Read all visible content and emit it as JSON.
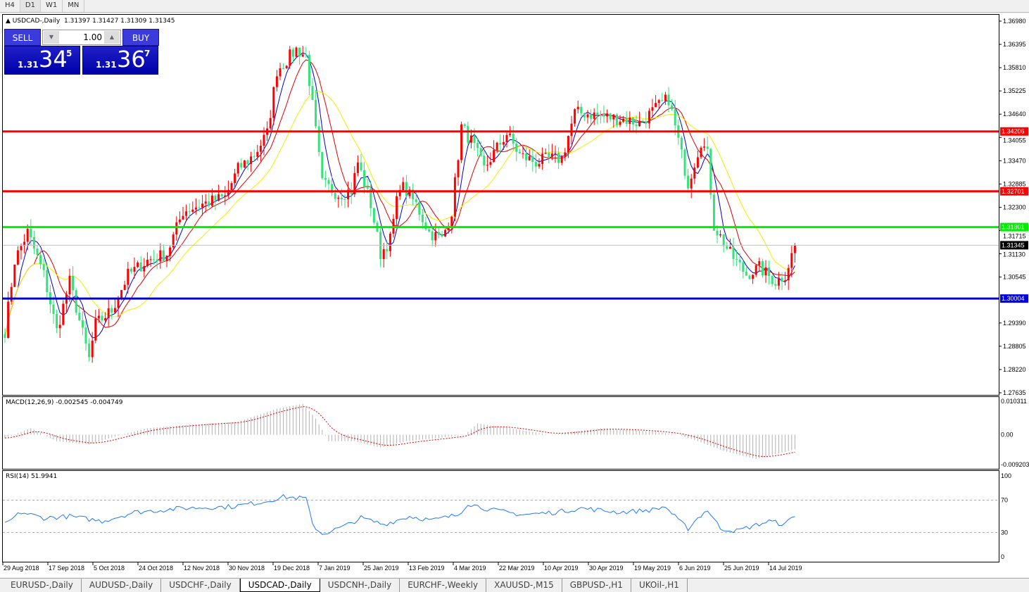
{
  "timeframes": [
    "H4",
    "D1",
    "W1",
    "MN"
  ],
  "active_timeframe": "D1",
  "header": {
    "symbol": "USDCAD-,Daily",
    "ohlc": "1.31397 1.31427 1.31309 1.31345"
  },
  "trade_panel": {
    "sell_label": "SELL",
    "buy_label": "BUY",
    "lot": "1.00",
    "sell_big": "1.31",
    "sell_mid": "34",
    "sell_sup": "5",
    "buy_big": "1.31",
    "buy_mid": "36",
    "buy_sup": "7"
  },
  "price_axis": [
    "1.36980",
    "1.36395",
    "1.35810",
    "1.35225",
    "1.34640",
    "1.34055",
    "1.33470",
    "1.32885",
    "1.32300",
    "1.31715",
    "1.31130",
    "1.30545",
    "1.29390",
    "1.28805",
    "1.28220",
    "1.27635"
  ],
  "levels": [
    {
      "price": 1.34206,
      "label": "1.34206",
      "color": "#ff0000"
    },
    {
      "price": 1.32701,
      "label": "1.32701",
      "color": "#ff0000"
    },
    {
      "price": 1.31801,
      "label": "1.31801",
      "color": "#00ee00"
    },
    {
      "price": 1.30004,
      "label": "1.30004",
      "color": "#0000dd"
    }
  ],
  "current_price": {
    "price": 1.31345,
    "label": "1.31345"
  },
  "macd": {
    "title": "MACD(12,26,9) -0.002545 -0.004749",
    "axis": [
      "0.010311",
      "0.00",
      "-0.009203"
    ]
  },
  "rsi": {
    "title": "RSI(14) 51.9941",
    "axis": [
      "100",
      "70",
      "30",
      "0"
    ]
  },
  "dates": [
    "29 Aug 2018",
    "17 Sep 2018",
    "5 Oct 2018",
    "24 Oct 2018",
    "12 Nov 2018",
    "30 Nov 2018",
    "19 Dec 2018",
    "7 Jan 2019",
    "25 Jan 2019",
    "13 Feb 2019",
    "4 Mar 2019",
    "22 Mar 2019",
    "10 Apr 2019",
    "30 Apr 2019",
    "19 May 2019",
    "6 Jun 2019",
    "25 Jun 2019",
    "14 Jul 2019"
  ],
  "chart_data": {
    "type": "candlestick",
    "ylim": [
      1.27635,
      1.3698
    ],
    "close_path": [
      [
        0,
        1.2919
      ],
      [
        3,
        1.3096
      ],
      [
        7,
        1.3167
      ],
      [
        12,
        1.3061
      ],
      [
        16,
        1.2919
      ],
      [
        20,
        1.3043
      ],
      [
        26,
        1.2848
      ],
      [
        28,
        1.2936
      ],
      [
        33,
        1.2971
      ],
      [
        38,
        1.306
      ],
      [
        44,
        1.3096
      ],
      [
        50,
        1.3113
      ],
      [
        55,
        1.322
      ],
      [
        61,
        1.3238
      ],
      [
        68,
        1.3255
      ],
      [
        72,
        1.3326
      ],
      [
        77,
        1.3362
      ],
      [
        81,
        1.3415
      ],
      [
        84,
        1.3574
      ],
      [
        90,
        1.3627
      ],
      [
        93,
        1.361
      ],
      [
        95,
        1.3485
      ],
      [
        98,
        1.329
      ],
      [
        103,
        1.3263
      ],
      [
        107,
        1.3272
      ],
      [
        109,
        1.3343
      ],
      [
        113,
        1.3237
      ],
      [
        116,
        1.3113
      ],
      [
        119,
        1.3149
      ],
      [
        122,
        1.329
      ],
      [
        127,
        1.3237
      ],
      [
        131,
        1.3167
      ],
      [
        135,
        1.3149
      ],
      [
        138,
        1.322
      ],
      [
        141,
        1.3432
      ],
      [
        144,
        1.3397
      ],
      [
        148,
        1.3326
      ],
      [
        152,
        1.3379
      ],
      [
        155,
        1.3415
      ],
      [
        159,
        1.3361
      ],
      [
        164,
        1.3343
      ],
      [
        168,
        1.3352
      ],
      [
        172,
        1.3352
      ],
      [
        176,
        1.3467
      ],
      [
        179,
        1.3467
      ],
      [
        185,
        1.3458
      ],
      [
        192,
        1.345
      ],
      [
        196,
        1.3441
      ],
      [
        202,
        1.3485
      ],
      [
        205,
        1.3503
      ],
      [
        208,
        1.3397
      ],
      [
        211,
        1.329
      ],
      [
        215,
        1.3397
      ],
      [
        217,
        1.3361
      ],
      [
        219,
        1.3184
      ],
      [
        224,
        1.3113
      ],
      [
        229,
        1.3061
      ],
      [
        233,
        1.3078
      ],
      [
        238,
        1.3043
      ],
      [
        241,
        1.3061
      ],
      [
        244,
        1.3134
      ]
    ],
    "ma_periods": [
      5,
      10,
      20
    ],
    "ma_colors": [
      "#0000cc",
      "#dd0000",
      "#eeee00"
    ],
    "up_color": "#ff0000",
    "down_color": "#33e27a",
    "rsi_path": [
      [
        0,
        40
      ],
      [
        5,
        55
      ],
      [
        12,
        48
      ],
      [
        20,
        50
      ],
      [
        30,
        44
      ],
      [
        40,
        55
      ],
      [
        55,
        60
      ],
      [
        70,
        62
      ],
      [
        80,
        68
      ],
      [
        86,
        74
      ],
      [
        93,
        72
      ],
      [
        95,
        40
      ],
      [
        98,
        28
      ],
      [
        105,
        38
      ],
      [
        110,
        48
      ],
      [
        117,
        40
      ],
      [
        125,
        50
      ],
      [
        132,
        45
      ],
      [
        140,
        52
      ],
      [
        143,
        66
      ],
      [
        150,
        58
      ],
      [
        160,
        52
      ],
      [
        170,
        55
      ],
      [
        178,
        60
      ],
      [
        190,
        55
      ],
      [
        200,
        58
      ],
      [
        204,
        62
      ],
      [
        208,
        45
      ],
      [
        211,
        35
      ],
      [
        214,
        48
      ],
      [
        217,
        58
      ],
      [
        221,
        35
      ],
      [
        226,
        32
      ],
      [
        231,
        38
      ],
      [
        236,
        44
      ],
      [
        241,
        40
      ],
      [
        244,
        52
      ]
    ],
    "macd_path": [
      [
        0,
        -0.001
      ],
      [
        8,
        0.002
      ],
      [
        16,
        -0.002
      ],
      [
        26,
        -0.003
      ],
      [
        36,
        0.0
      ],
      [
        44,
        0.002
      ],
      [
        56,
        0.003
      ],
      [
        72,
        0.004
      ],
      [
        84,
        0.008
      ],
      [
        92,
        0.0095
      ],
      [
        96,
        0.005
      ],
      [
        100,
        -0.002
      ],
      [
        108,
        -0.002
      ],
      [
        116,
        -0.004
      ],
      [
        124,
        -0.002
      ],
      [
        134,
        -0.001
      ],
      [
        142,
        0.0
      ],
      [
        146,
        0.0035
      ],
      [
        156,
        0.002
      ],
      [
        168,
        0.0
      ],
      [
        176,
        0.001
      ],
      [
        184,
        0.002
      ],
      [
        200,
        0.001
      ],
      [
        208,
        0.0
      ],
      [
        214,
        -0.002
      ],
      [
        222,
        -0.005
      ],
      [
        232,
        -0.0075
      ],
      [
        238,
        -0.006
      ],
      [
        244,
        -0.0045
      ]
    ]
  }
}
